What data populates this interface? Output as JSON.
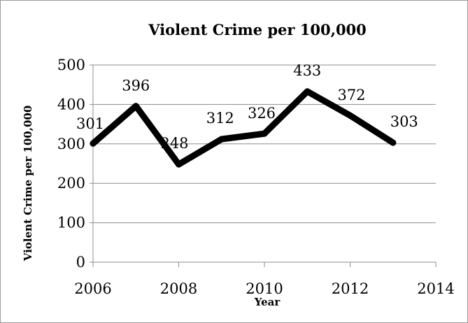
{
  "chart_data": {
    "type": "line",
    "title": "Violent Crime per 100,000",
    "xlabel": "Year",
    "ylabel": "Violent Crime per 100,000",
    "xlim": [
      2006,
      2014
    ],
    "ylim": [
      0,
      500
    ],
    "xticks": [
      "2006",
      "2008",
      "2010",
      "2012",
      "2014"
    ],
    "yticks": [
      "0",
      "100",
      "200",
      "300",
      "400",
      "500"
    ],
    "grid": true,
    "legend": "none",
    "series": [
      {
        "x": [
          2006,
          2007,
          2008,
          2009,
          2010,
          2011,
          2012,
          2013
        ],
        "values": [
          301,
          396,
          248,
          312,
          326,
          433,
          372,
          303
        ],
        "data_labels": [
          "301",
          "396",
          "248",
          "312",
          "326",
          "433",
          "372",
          "303"
        ],
        "color": "#000000"
      }
    ]
  }
}
